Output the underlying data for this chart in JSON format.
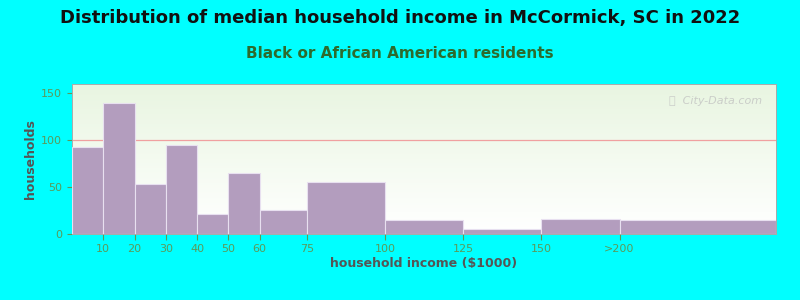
{
  "title": "Distribution of median household income in McCormick, SC in 2022",
  "subtitle": "Black or African American residents",
  "xlabel": "household income ($1000)",
  "ylabel": "households",
  "background_outer": "#00FFFF",
  "bar_color": "#b39dbe",
  "bar_edgecolor": "#e8e0f0",
  "gridline_color": "#f0a0a0",
  "bin_edges": [
    0,
    10,
    20,
    30,
    40,
    50,
    60,
    75,
    100,
    125,
    150,
    175,
    225
  ],
  "values": [
    93,
    140,
    53,
    95,
    21,
    65,
    26,
    56,
    15,
    5,
    16,
    15
  ],
  "xtick_positions": [
    10,
    20,
    30,
    40,
    50,
    60,
    75,
    100,
    125,
    150,
    175
  ],
  "xtick_labels": [
    "10",
    "20",
    "30",
    "40",
    "50",
    "60",
    "75",
    "100",
    "125",
    "150",
    ">200"
  ],
  "ylim": [
    0,
    160
  ],
  "yticks": [
    0,
    50,
    100,
    150
  ],
  "title_fontsize": 13,
  "subtitle_fontsize": 11,
  "axis_label_fontsize": 9,
  "tick_fontsize": 8,
  "title_color": "#111111",
  "subtitle_color": "#2d6b2d",
  "axis_label_color": "#555555",
  "tick_color": "#5a9a5a",
  "watermark_text": "ⓘ  City-Data.com"
}
